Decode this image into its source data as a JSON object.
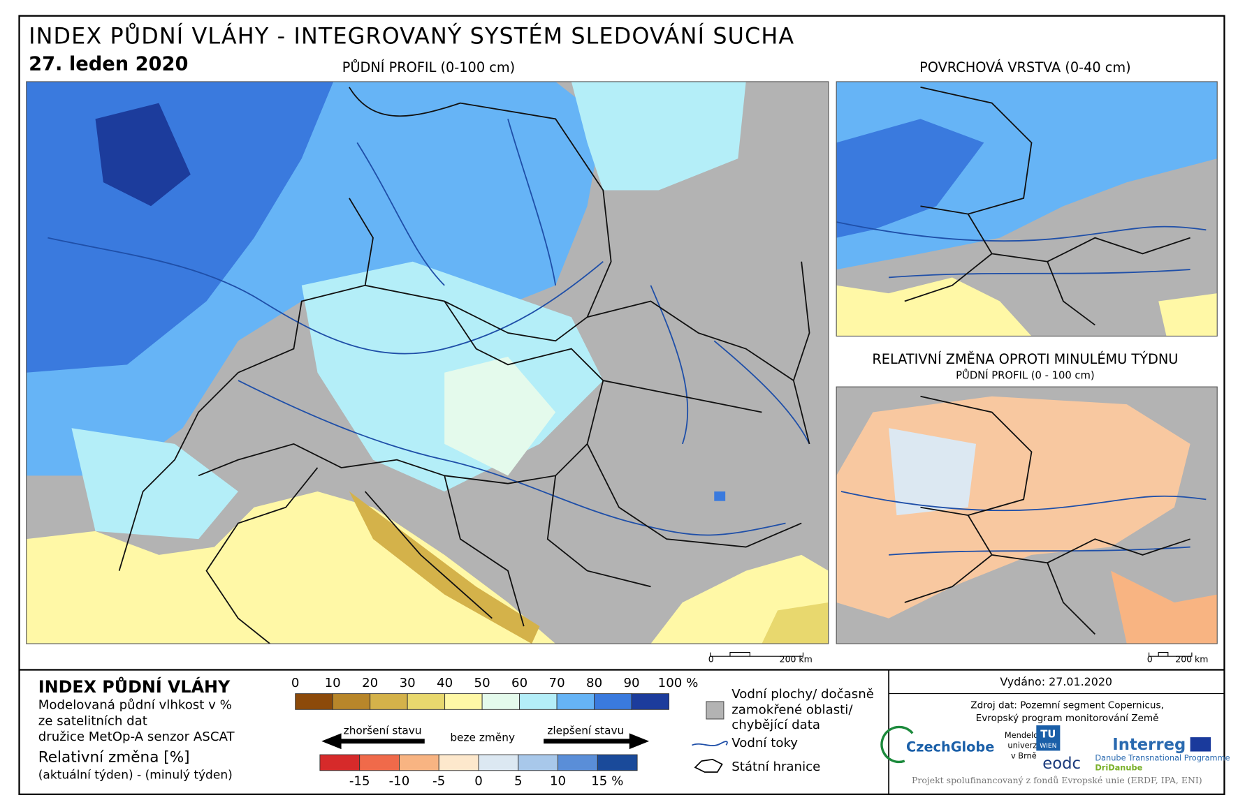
{
  "header": {
    "title": "INDEX PŮDNÍ VLÁHY - INTEGROVANÝ SYSTÉM SLEDOVÁNÍ SUCHA",
    "date": "27. leden 2020"
  },
  "maps": {
    "main": {
      "title": "PŮDNÍ PROFIL (0-100 cm)",
      "scale": [
        "0",
        "200 km"
      ]
    },
    "surface": {
      "title": "POVRCHOVÁ VRSTVA (0-40 cm)",
      "scale": [
        "0",
        "200 km"
      ]
    },
    "change": {
      "title": "RELATIVNÍ ZMĚNA OPROTI MINULÉMU TÝDNU",
      "subtitle": "PŮDNÍ PROFIL (0 - 100 cm)"
    }
  },
  "legend": {
    "title": "INDEX PŮDNÍ VLÁHY",
    "description": [
      "Modelovaná půdní vlhkost v %",
      "ze satelitních dat",
      "družice MetOp-A senzor ASCAT"
    ],
    "change_title": "Relativní změna [%]",
    "change_description": "(aktuální týden) - (minulý týden)",
    "moisture_ticks": [
      "0",
      "10",
      "20",
      "30",
      "40",
      "50",
      "60",
      "70",
      "80",
      "90",
      "100 %"
    ],
    "moisture_colors": [
      "#8c4a0a",
      "#b8862a",
      "#d4b24a",
      "#e8d86e",
      "#fff8a6",
      "#e4faec",
      "#b4eef8",
      "#66b4f6",
      "#3a7ade",
      "#1c3c9c"
    ],
    "worse": "zhoršení stavu",
    "no_change": "beze změny",
    "better": "zlepšení stavu",
    "change_ticks": [
      "-15",
      "-10",
      "-5",
      "0",
      "5",
      "10",
      "15 %"
    ],
    "change_colors": [
      "#d62a2a",
      "#f06a4a",
      "#f8b482",
      "#fde8cc",
      "#dce8f2",
      "#a8c8ea",
      "#5a8ed8",
      "#1a4a9a"
    ],
    "water_areas": [
      "Vodní plochy/ dočasně",
      "zamokřené oblasti/",
      "chybějící data"
    ],
    "rivers": "Vodní toky",
    "borders": "Státní hranice"
  },
  "footer": {
    "issued": "Vydáno: 27.01.2020",
    "source": [
      "Zdroj dat: Pozemní segment Copernicus,",
      "Evropský program monitorování Země"
    ],
    "logos": {
      "czechglobe": "CzechGlobe",
      "mendel": [
        "Mendelova",
        "univerzita",
        "v Brně"
      ],
      "tu": [
        "TU",
        "WIEN"
      ],
      "eodc": "eodc",
      "interreg": "Interreg",
      "programme": "Danube Transnational Programme",
      "project": "DriDanube"
    },
    "funding": "Projekt spolufinancovaný z fondů Evropské unie (ERDF, IPA, ENI)"
  }
}
